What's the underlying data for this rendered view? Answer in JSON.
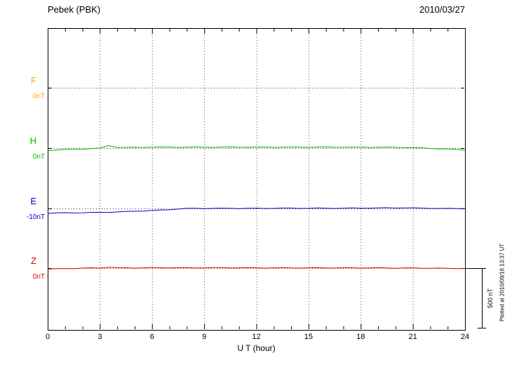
{
  "header": {
    "title": "Pebek (PBK)",
    "date": "2010/03/27"
  },
  "axis": {
    "xlabel": "U T (hour)",
    "xticks": [
      "0",
      "3",
      "6",
      "9",
      "12",
      "15",
      "18",
      "21",
      "24"
    ]
  },
  "channels": [
    {
      "label": "F",
      "unit": "0nT",
      "color": "#FFA500"
    },
    {
      "label": "H",
      "unit": "0nT",
      "color": "#00B800"
    },
    {
      "label": "E",
      "unit": "-10nT",
      "color": "#0000C8"
    },
    {
      "label": "Z",
      "unit": "0nT",
      "color": "#DC0000"
    }
  ],
  "scale_bar": {
    "label": "500 nT",
    "span_nT": 500
  },
  "footer": {
    "note": "Plotted at 2010/09/16 13:37 UT"
  },
  "chart_data": {
    "type": "line",
    "title": "Pebek (PBK) magnetogram",
    "date": "2010/03/27",
    "xlabel": "U T (hour)",
    "x_range": [
      0,
      24
    ],
    "x_step_hours": 0.5,
    "x_ticks": [
      0,
      3,
      6,
      9,
      12,
      15,
      18,
      21,
      24
    ],
    "grid": "dotted",
    "scale_bar_nT": 500,
    "series": [
      {
        "name": "F",
        "color": "#FFA500",
        "baseline_nT": 0,
        "values": []
      },
      {
        "name": "H",
        "color": "#00B800",
        "baseline_nT": 0,
        "values": [
          -20,
          -16,
          -13,
          -10,
          -7,
          -5,
          -2,
          22,
          8,
          5,
          6,
          7,
          8,
          8,
          8,
          8,
          8,
          8,
          8,
          8,
          8,
          8,
          8,
          8,
          8,
          8,
          8,
          8,
          8,
          8,
          8,
          8,
          8,
          8,
          8,
          7,
          7,
          7,
          7,
          6,
          6,
          5,
          3,
          1,
          -2,
          -5,
          -8,
          -12,
          -16
        ]
      },
      {
        "name": "E",
        "color": "#0000C8",
        "baseline_nT": -10,
        "values": [
          -50,
          -48,
          -47,
          -46,
          -45,
          -44,
          -43,
          -41,
          -39,
          -36,
          -33,
          -30,
          -27,
          -24,
          -20,
          -14,
          -10,
          -9,
          -9,
          -9,
          -9,
          -9,
          -9,
          -9,
          -9,
          -9,
          -8,
          -8,
          -8,
          -8,
          -8,
          -8,
          -8,
          -8,
          -8,
          -7,
          -7,
          -6,
          -6,
          -5,
          -5,
          -5,
          -6,
          -7,
          -8,
          -10,
          -11,
          -10,
          -10
        ]
      },
      {
        "name": "Z",
        "color": "#DC0000",
        "baseline_nT": 0,
        "values": [
          -8,
          -6,
          -4,
          -2,
          0,
          1,
          1,
          9,
          3,
          2,
          2,
          3,
          3,
          3,
          3,
          3,
          3,
          3,
          3,
          3,
          3,
          3,
          3,
          2,
          2,
          2,
          2,
          2,
          2,
          2,
          2,
          2,
          2,
          2,
          2,
          2,
          2,
          2,
          2,
          2,
          1,
          1,
          1,
          0,
          0,
          -1,
          -2,
          -3,
          -3
        ]
      }
    ]
  }
}
